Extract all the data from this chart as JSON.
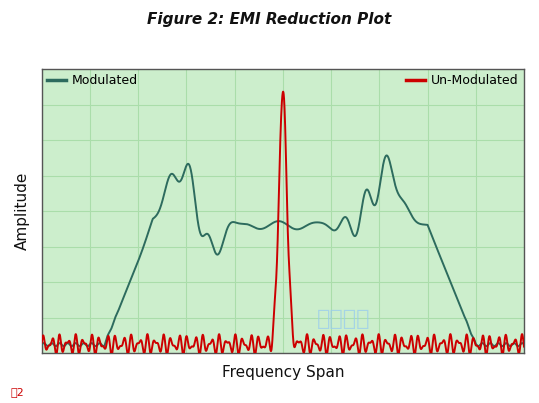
{
  "title": "Figure 2: EMI Reduction Plot",
  "xlabel": "Frequency Span",
  "ylabel": "Amplitude",
  "legend_modulated": "Modulated",
  "legend_unmodulated": "Un-Modulated",
  "modulated_color": "#2d6b5e",
  "unmodulated_color": "#cc0000",
  "bg_color": "#cceecc",
  "grid_color": "#aaddaa",
  "fig_bg": "#ffffff",
  "title_color": "#111111",
  "label_color": "#111111",
  "watermark_color": "#99ccee",
  "figsize": [
    5.39,
    4.03
  ],
  "dpi": 100
}
